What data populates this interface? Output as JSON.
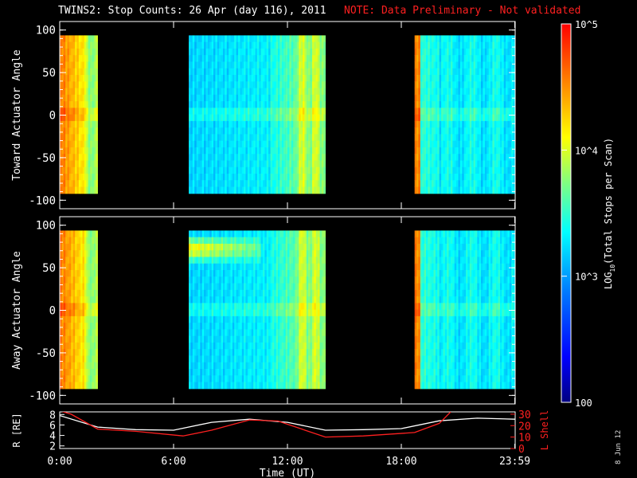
{
  "title": "TWINS2: Stop Counts: 26 Apr (day 116), 2011",
  "note": "NOTE: Data Preliminary - Not validated",
  "date_stamp": "8 Jun 12",
  "colors": {
    "background": "#000000",
    "axes": "#ffffff",
    "note": "#ff2020",
    "l_shell": "#ff2020",
    "r_line": "#ffffff"
  },
  "chart_data": [
    {
      "type": "heatmap",
      "panel": "top",
      "ylabel": "Toward Actuator Angle",
      "yticks": [
        100,
        50,
        0,
        -50,
        -100
      ],
      "ylim": [
        -110,
        110
      ],
      "xlim": [
        0,
        24
      ],
      "y_extent": [
        -88,
        90
      ],
      "data_blocks_ut": [
        [
          0.0,
          2.0
        ],
        [
          6.8,
          14.0
        ],
        [
          18.7,
          24.0
        ]
      ],
      "features": "high counts (red/orange, ~1e4-1e5) near 0:00-1:40 and 18:40-19:00; mid/low (blue-cyan, ~1e3) during 6:50-12:30, rising to yellow 12:30-14:00"
    },
    {
      "type": "heatmap",
      "panel": "middle",
      "ylabel": "Away Actuator Angle",
      "yticks": [
        100,
        50,
        0,
        -50,
        -100
      ],
      "ylim": [
        -110,
        110
      ],
      "xlim": [
        0,
        24
      ],
      "y_extent": [
        -88,
        90
      ],
      "data_blocks_ut": [
        [
          0.0,
          2.0
        ],
        [
          6.8,
          14.0
        ],
        [
          18.7,
          24.0
        ]
      ],
      "features": "red/yellow band near angle +70 from 6:50-10:00; high counts near 0:00-1:40 and 18:40-19:00"
    },
    {
      "type": "line",
      "panel": "bottom",
      "xlabel": "Time (UT)",
      "xticks": [
        "0:00",
        "6:00",
        "12:00",
        "18:00",
        "23:59"
      ],
      "xtick_values": [
        0,
        6,
        12,
        18,
        23.98
      ],
      "left_axis": {
        "label": "R [RE]",
        "ticks": [
          2,
          4,
          6,
          8
        ],
        "range": [
          1.5,
          8.5
        ]
      },
      "right_axis": {
        "label": "L Shell",
        "ticks": [
          0,
          10,
          20,
          30
        ],
        "range": [
          0,
          32
        ]
      },
      "series": [
        {
          "name": "R [RE]",
          "axis": "left",
          "color": "#ffffff",
          "x": [
            0,
            2,
            4,
            6,
            8,
            10,
            12,
            14,
            16,
            18,
            20,
            22,
            24
          ],
          "y": [
            7.8,
            5.6,
            5.1,
            5.0,
            6.5,
            7.1,
            6.5,
            5.0,
            5.1,
            5.3,
            6.8,
            7.3,
            7.1
          ]
        },
        {
          "name": "L Shell",
          "axis": "right",
          "color": "#ff2020",
          "x": [
            0,
            0.6,
            2,
            4,
            6.5,
            8,
            10,
            11.5,
            14,
            16,
            18.7,
            20,
            20.6
          ],
          "y": [
            33,
            30,
            17,
            15,
            11,
            16,
            25,
            24,
            10,
            11,
            14,
            22,
            32
          ]
        }
      ]
    }
  ],
  "colorbar": {
    "label": "LOG10(Total Stops per Scan)",
    "label_parts": {
      "pre": "LOG",
      "sub": "10",
      "post": "(Total Stops per Scan)"
    },
    "ticks": [
      {
        "value": 100000,
        "label": "10^5"
      },
      {
        "value": 10000,
        "label": "10^4"
      },
      {
        "value": 1000,
        "label": "10^3"
      },
      {
        "value": 100,
        "label": "100"
      }
    ],
    "range": [
      100,
      100000
    ]
  }
}
